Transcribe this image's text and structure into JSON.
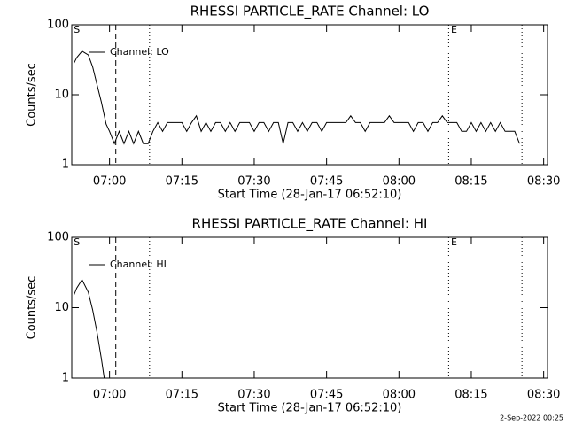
{
  "chart_data": [
    {
      "type": "line",
      "title": "RHESSI PARTICLE_RATE Channel: LO",
      "xlabel": "Start Time (28-Jan-17 06:52:10)",
      "ylabel": "Counts/sec",
      "log_y": true,
      "legend": "upper left",
      "xlim": [
        412.17,
        510.8
      ],
      "ylim": [
        1,
        100
      ],
      "yticks": [
        1,
        10,
        100
      ],
      "xticks": [
        {
          "value": 420,
          "label": "07:00"
        },
        {
          "value": 435,
          "label": "07:15"
        },
        {
          "value": 450,
          "label": "07:30"
        },
        {
          "value": 465,
          "label": "07:45"
        },
        {
          "value": 480,
          "label": "08:00"
        },
        {
          "value": 495,
          "label": "08:15"
        },
        {
          "value": 510,
          "label": "08:30"
        }
      ],
      "vlines": [
        {
          "x": 421.3,
          "style": "dashed"
        },
        {
          "x": 428.3,
          "style": "dotted"
        },
        {
          "x": 490.3,
          "style": "dotted"
        },
        {
          "x": 505.5,
          "style": "dotted"
        }
      ],
      "markers": [
        {
          "label": "S",
          "x": 412.4
        },
        {
          "label": "E",
          "x": 490.6
        }
      ],
      "x": [
        412.6,
        413.2,
        414.3,
        415.6,
        416.5,
        417.4,
        418.3,
        419.3,
        420,
        421,
        422,
        423,
        424,
        425,
        426,
        427,
        428,
        429,
        430,
        431,
        432,
        433,
        434,
        435,
        436,
        437,
        438,
        439,
        440,
        441,
        442,
        443,
        444,
        445,
        446,
        447,
        448,
        449,
        450,
        451,
        452,
        453,
        454,
        455,
        456,
        457,
        458,
        459,
        460,
        461,
        462,
        463,
        464,
        465,
        466,
        467,
        468,
        469,
        470,
        471,
        472,
        473,
        474,
        475,
        476,
        477,
        478,
        479,
        480,
        481,
        482,
        483,
        484,
        485,
        486,
        487,
        488,
        489,
        490,
        491,
        492,
        493,
        494,
        495,
        496,
        497,
        498,
        499,
        500,
        501,
        502,
        503,
        504,
        505
      ],
      "series": [
        {
          "name": "Channel: LO",
          "color": "#000000",
          "values": [
            28,
            34,
            42,
            37,
            25,
            14,
            7.9,
            3.8,
            3,
            2,
            3,
            2,
            3,
            2,
            3,
            2,
            2,
            3,
            4,
            3,
            4,
            4,
            4,
            4,
            3,
            4,
            5,
            3,
            4,
            3,
            4,
            4,
            3,
            4,
            3,
            4,
            4,
            4,
            3,
            4,
            4,
            3,
            4,
            4,
            2,
            4,
            4,
            3,
            4,
            3,
            4,
            4,
            3,
            4,
            4,
            4,
            4,
            4,
            5,
            4,
            4,
            3,
            4,
            4,
            4,
            4,
            5,
            4,
            4,
            4,
            4,
            3,
            4,
            4,
            3,
            4,
            4,
            5,
            4,
            4,
            4,
            3,
            3,
            4,
            3,
            4,
            3,
            4,
            3,
            4,
            3,
            3,
            3,
            2
          ]
        }
      ]
    },
    {
      "type": "line",
      "title": "RHESSI PARTICLE_RATE Channel: HI",
      "xlabel": "Start Time (28-Jan-17 06:52:10)",
      "ylabel": "Counts/sec",
      "log_y": true,
      "legend": "upper left",
      "xlim": [
        412.17,
        510.8
      ],
      "ylim": [
        1,
        100
      ],
      "yticks": [
        1,
        10,
        100
      ],
      "xticks": [
        {
          "value": 420,
          "label": "07:00"
        },
        {
          "value": 435,
          "label": "07:15"
        },
        {
          "value": 450,
          "label": "07:30"
        },
        {
          "value": 465,
          "label": "07:45"
        },
        {
          "value": 480,
          "label": "08:00"
        },
        {
          "value": 495,
          "label": "08:15"
        },
        {
          "value": 510,
          "label": "08:30"
        }
      ],
      "vlines": [
        {
          "x": 421.3,
          "style": "dashed"
        },
        {
          "x": 428.3,
          "style": "dotted"
        },
        {
          "x": 490.3,
          "style": "dotted"
        },
        {
          "x": 505.5,
          "style": "dotted"
        }
      ],
      "markers": [
        {
          "label": "S",
          "x": 412.4
        },
        {
          "label": "E",
          "x": 490.6
        }
      ],
      "x": [
        412.6,
        413.2,
        414.3,
        415.6,
        416.5,
        417.4,
        418.3,
        418.9
      ],
      "series": [
        {
          "name": "Channel: HI",
          "color": "#000000",
          "values": [
            15,
            19,
            25,
            16.6,
            9.3,
            4.5,
            1.9,
            1
          ]
        }
      ]
    }
  ],
  "footer": "2-Sep-2022 00:25"
}
